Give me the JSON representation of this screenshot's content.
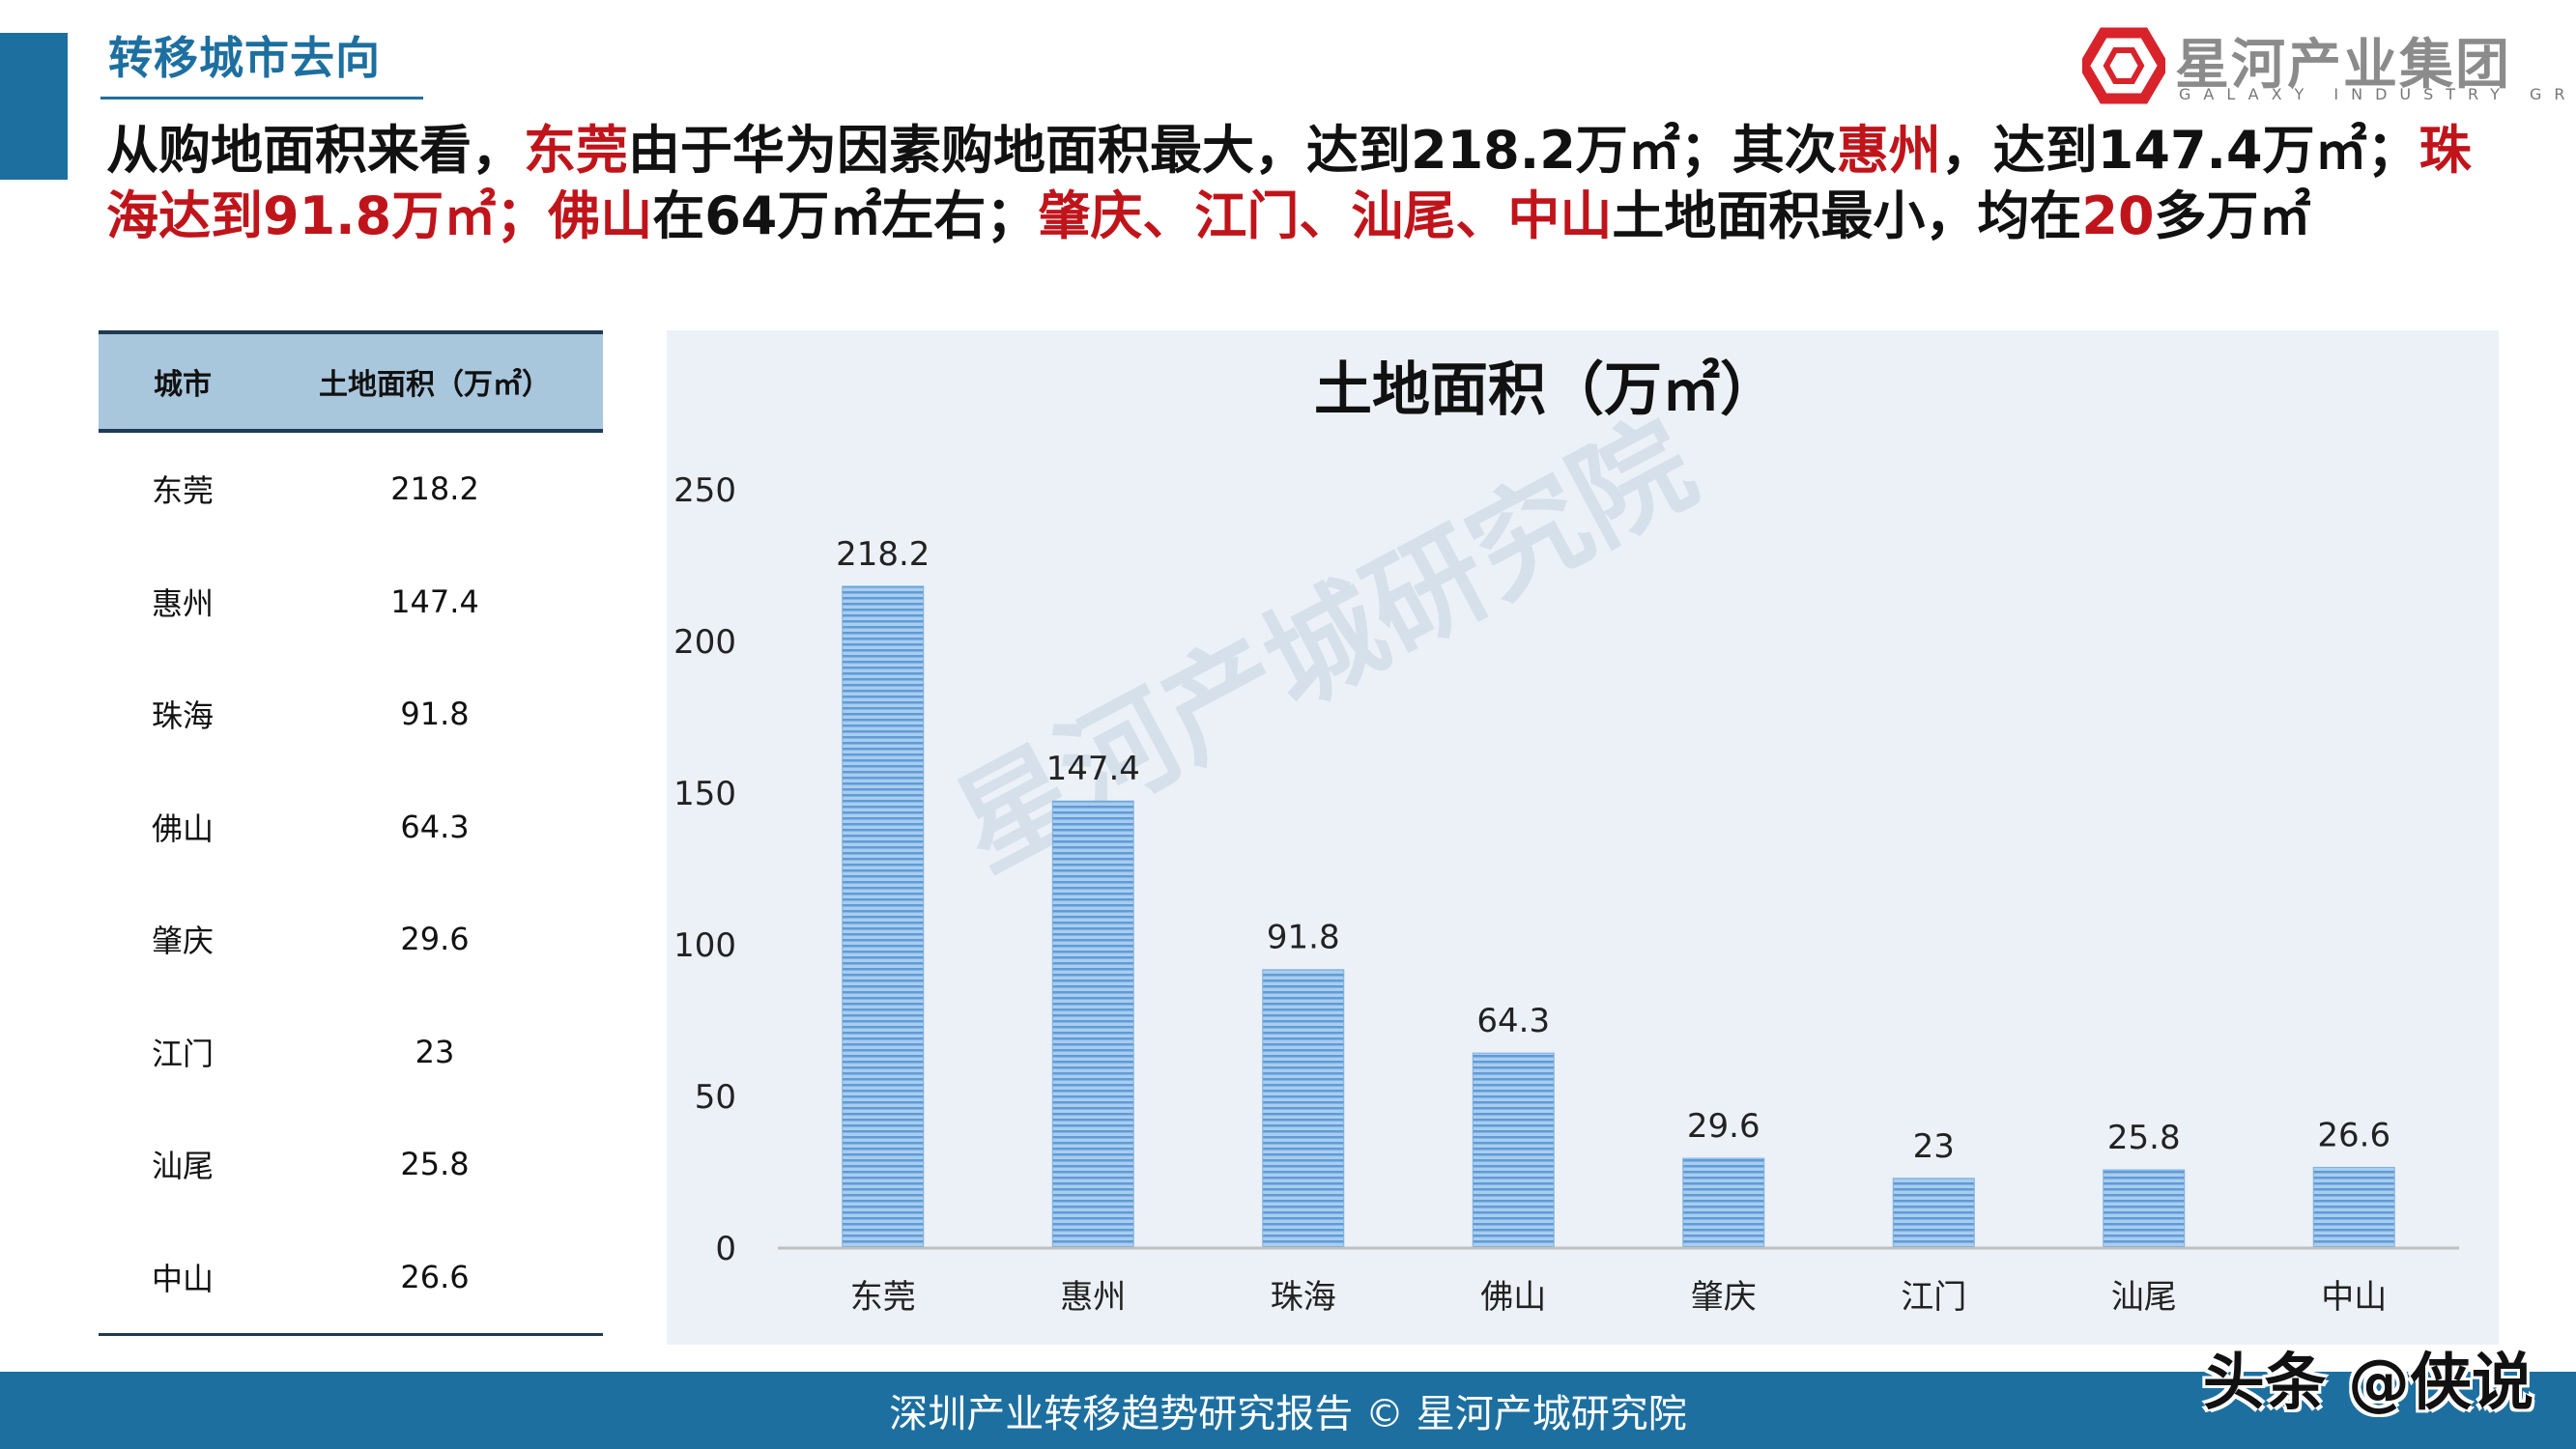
{
  "header": {
    "section_title": "转移城市去向",
    "logo": {
      "name_cn": "星河产业集团",
      "name_en": "GALAXY INDUSTRY GROUP"
    }
  },
  "headline_segments": [
    {
      "text": "从购地面积来看，",
      "highlight": false
    },
    {
      "text": "东莞",
      "highlight": true
    },
    {
      "text": "由于华为因素购地面积最大，达到218.2万㎡；其次",
      "highlight": false
    },
    {
      "text": "惠州",
      "highlight": true
    },
    {
      "text": "，达到147.4万㎡；",
      "highlight": false
    },
    {
      "text": "珠海",
      "highlight": true
    },
    {
      "text": "达到91.8万㎡；",
      "highlight": true
    },
    {
      "text": "佛山",
      "highlight": true
    },
    {
      "text": "在64万㎡左右；",
      "highlight": false
    },
    {
      "text": "肇庆、江门、汕尾、中山",
      "highlight": true
    },
    {
      "text": "土地面积最小，均在",
      "highlight": false
    },
    {
      "text": "20",
      "highlight": true
    },
    {
      "text": "多万㎡",
      "highlight": false
    }
  ],
  "table": {
    "headers": [
      "城市",
      "土地面积（万㎡）"
    ],
    "rows": [
      [
        "东莞",
        "218.2"
      ],
      [
        "惠州",
        "147.4"
      ],
      [
        "珠海",
        "91.8"
      ],
      [
        "佛山",
        "64.3"
      ],
      [
        "肇庆",
        "29.6"
      ],
      [
        "江门",
        "23"
      ],
      [
        "汕尾",
        "25.8"
      ],
      [
        "中山",
        "26.6"
      ]
    ]
  },
  "chart_data": {
    "type": "bar",
    "title": "土地面积（万㎡）",
    "categories": [
      "东莞",
      "惠州",
      "珠海",
      "佛山",
      "肇庆",
      "江门",
      "汕尾",
      "中山"
    ],
    "values": [
      218.2,
      147.4,
      91.8,
      64.3,
      29.6,
      23,
      25.8,
      26.6
    ],
    "data_labels": [
      "218.2",
      "147.4",
      "91.8",
      "64.3",
      "29.6",
      "23",
      "25.8",
      "26.6"
    ],
    "ylim": [
      0,
      250
    ],
    "yticks": [
      0,
      50,
      100,
      150,
      200,
      250
    ],
    "xlabel": "",
    "ylabel": "",
    "grid": false,
    "legend": "none",
    "bar_color": "#7fb1df",
    "watermark_text": "星河产城研究院"
  },
  "footer": {
    "text": "深圳产业转移趋势研究报告 © 星河产城研究院",
    "watermark": "头条 @侠说"
  },
  "colors": {
    "brand_blue": "#1d6fa0",
    "highlight_red": "#c0141b",
    "table_header": "#a8c6dc",
    "chart_bg": "#ecf1f7"
  }
}
